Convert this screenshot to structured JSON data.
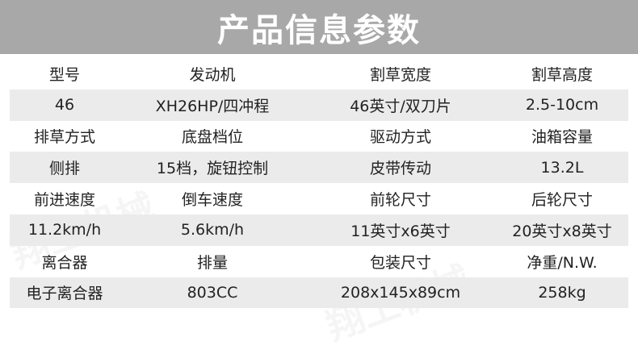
{
  "title": "产品信息参数",
  "watermark": "翔工机械",
  "rows": [
    {
      "type": "label",
      "cells": [
        "型号",
        "发动机",
        "割草宽度",
        "割草高度"
      ]
    },
    {
      "type": "value",
      "cells": [
        "46",
        "XH26HP/四冲程",
        "46英寸/双刀片",
        "2.5-10cm"
      ]
    },
    {
      "type": "label",
      "cells": [
        "排草方式",
        "底盘档位",
        "驱动方式",
        "油箱容量"
      ]
    },
    {
      "type": "value",
      "cells": [
        "侧排",
        "15档，旋钮控制",
        "皮带传动",
        "13.2L"
      ]
    },
    {
      "type": "label",
      "cells": [
        "前进速度",
        "倒车速度",
        "前轮尺寸",
        "后轮尺寸"
      ]
    },
    {
      "type": "value",
      "cells": [
        "11.2km/h",
        "5.6km/h",
        "11英寸x6英寸",
        "20英寸x8英寸"
      ]
    },
    {
      "type": "label",
      "cells": [
        "离合器",
        "排量",
        "包装尺寸",
        "净重/N.W."
      ]
    },
    {
      "type": "value",
      "cells": [
        "电子离合器",
        "803CC",
        "208x145x89cm",
        "258kg"
      ]
    }
  ]
}
